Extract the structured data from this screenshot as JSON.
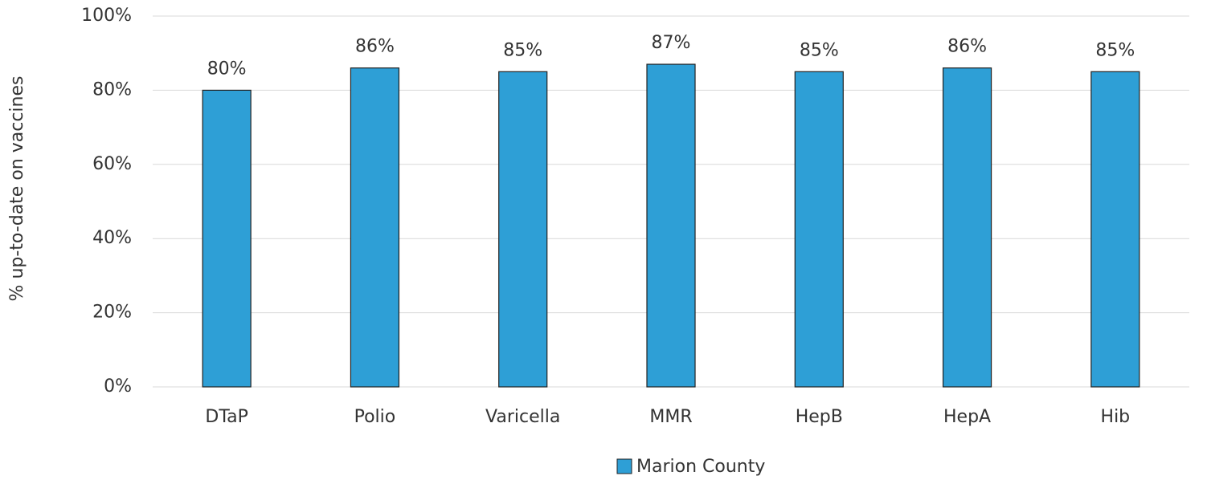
{
  "chart_data": {
    "type": "bar",
    "y_axis_label": "% up-to-date on vaccines",
    "categories": [
      "DTaP",
      "Polio",
      "Varicella",
      "MMR",
      "HepB",
      "HepA",
      "Hib"
    ],
    "series": [
      {
        "name": "Marion County",
        "color": "#2e9fd6",
        "values": [
          80,
          86,
          85,
          87,
          85,
          86,
          85
        ],
        "value_labels": [
          "80%",
          "86%",
          "85%",
          "87%",
          "85%",
          "86%",
          "85%"
        ]
      }
    ],
    "ylim": [
      0,
      100
    ],
    "yticks": [
      {
        "value": 0,
        "label": "0%"
      },
      {
        "value": 20,
        "label": "20%"
      },
      {
        "value": 40,
        "label": "40%"
      },
      {
        "value": 60,
        "label": "60%"
      },
      {
        "value": 80,
        "label": "80%"
      },
      {
        "value": 100,
        "label": "100%"
      }
    ],
    "grid": true,
    "legend": "bottom"
  }
}
